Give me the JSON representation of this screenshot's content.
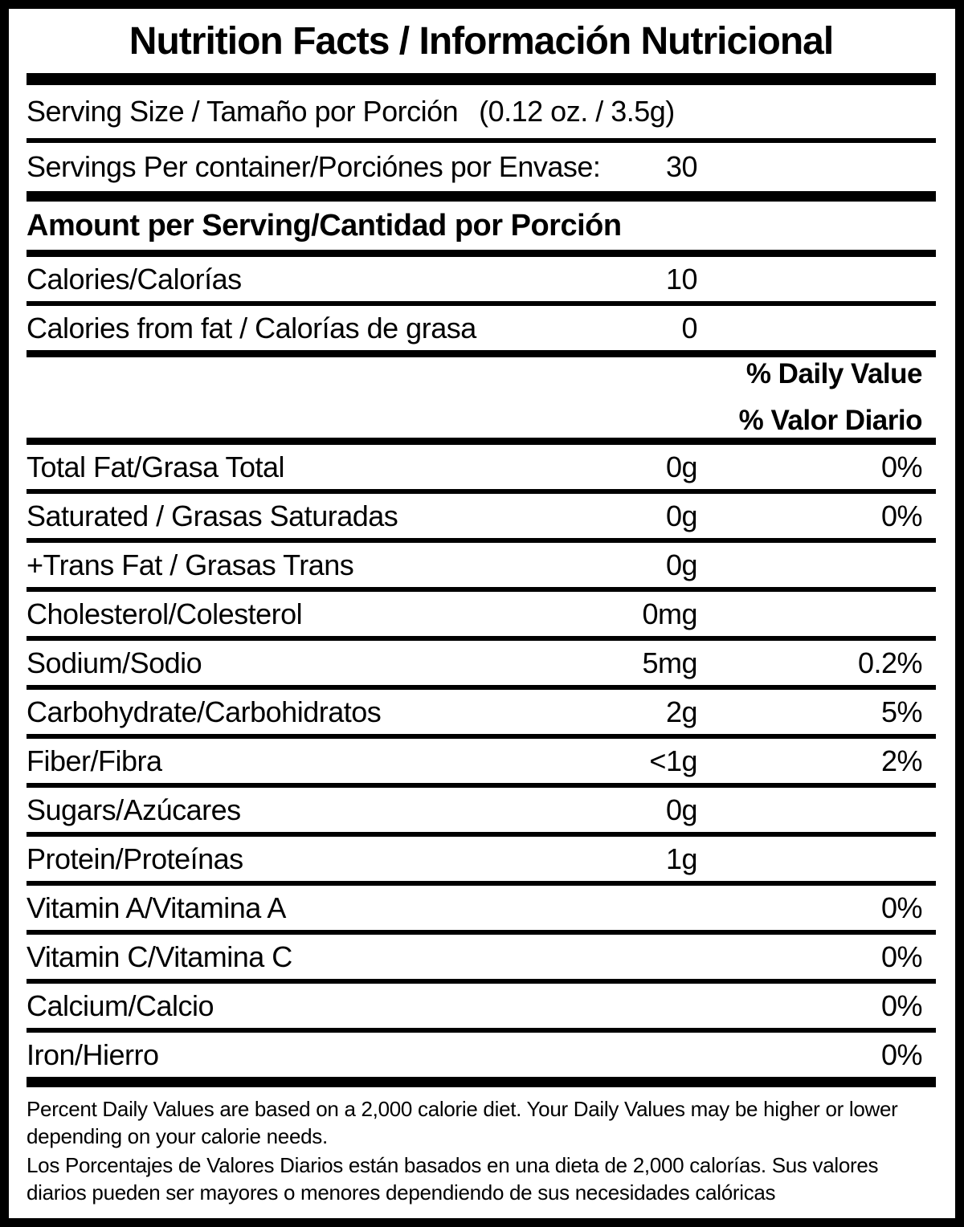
{
  "title": "Nutrition Facts / Información Nutricional",
  "serving": {
    "size_label": "Serving Size / Tamaño por Porción",
    "size_value": "(0.12 oz. / 3.5g)",
    "per_container_label": "Servings Per container/Porciónes por Envase:",
    "per_container_value": "30"
  },
  "amount_header": "Amount per Serving/Cantidad por Porción",
  "calories": {
    "label": "Calories/Calorías",
    "value": "10"
  },
  "calories_from_fat": {
    "label": "Calories from fat / Calorías de grasa",
    "value": "0"
  },
  "daily_value_header": {
    "line1": "% Daily Value",
    "line2": "% Valor Diario"
  },
  "nutrients": [
    {
      "label": "Total Fat/Grasa Total",
      "amount": "0g",
      "dv": "0%"
    },
    {
      "label": "Saturated / Grasas Saturadas",
      "amount": "0g",
      "dv": "0%"
    },
    {
      "label": "+Trans Fat / Grasas Trans",
      "amount": "0g",
      "dv": ""
    },
    {
      "label": "Cholesterol/Colesterol",
      "amount": "0mg",
      "dv": ""
    },
    {
      "label": "Sodium/Sodio",
      "amount": "5mg",
      "dv": "0.2%"
    },
    {
      "label": "Carbohydrate/Carbohidratos",
      "amount": "2g",
      "dv": "5%"
    },
    {
      "label": "Fiber/Fibra",
      "amount": "<1g",
      "dv": "2%"
    },
    {
      "label": "Sugars/Azúcares",
      "amount": "0g",
      "dv": ""
    },
    {
      "label": "Protein/Proteínas",
      "amount": "1g",
      "dv": ""
    },
    {
      "label": "Vitamin A/Vitamina A",
      "amount": "",
      "dv": "0%"
    },
    {
      "label": "Vitamin C/Vitamina C",
      "amount": "",
      "dv": "0%"
    },
    {
      "label": "Calcium/Calcio",
      "amount": "",
      "dv": "0%"
    },
    {
      "label": "Iron/Hierro",
      "amount": "",
      "dv": "0%"
    }
  ],
  "footnote": {
    "english": "Percent Daily Values are based on a 2,000 calorie diet. Your Daily Values may be higher or lower depending on your calorie needs.",
    "spanish": "Los Porcentajes de Valores Diarios están basados en una dieta de 2,000 calorías. Sus valores diarios pueden ser mayores o menores dependiendo de sus necesidades calóricas"
  },
  "colors": {
    "ink": "#000000",
    "background": "#ffffff"
  }
}
